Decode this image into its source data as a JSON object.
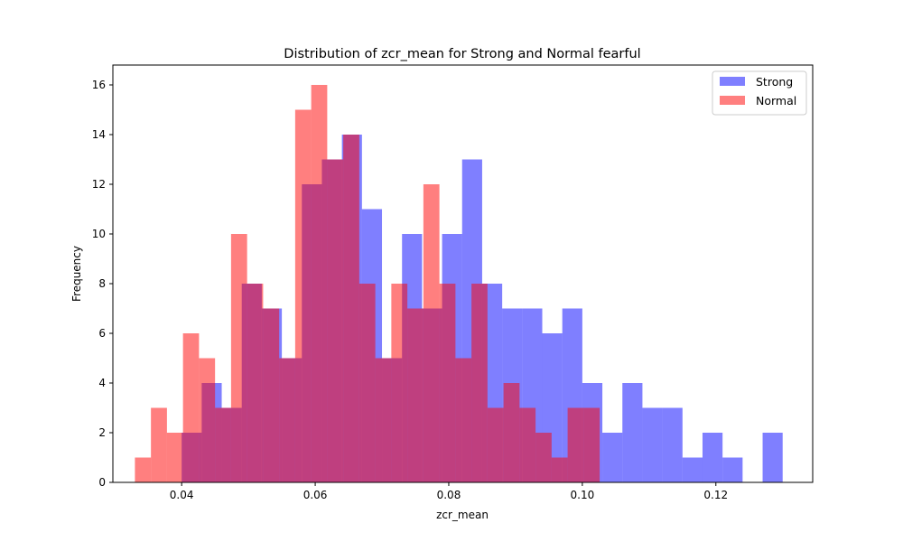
{
  "chart_data": {
    "type": "histogram",
    "title": "Distribution of zcr_mean for Strong and Normal fearful",
    "xlabel": "zcr_mean",
    "ylabel": "Frequency",
    "xlim": [
      0.0297,
      0.1345
    ],
    "ylim": [
      0,
      16.8
    ],
    "xticks": [
      0.04,
      0.06,
      0.08,
      0.1,
      0.12
    ],
    "xtick_labels": [
      "0.04",
      "0.06",
      "0.08",
      "0.10",
      "0.12"
    ],
    "yticks": [
      0,
      2,
      4,
      6,
      8,
      10,
      12,
      14,
      16
    ],
    "ytick_labels": [
      "0",
      "2",
      "4",
      "6",
      "8",
      "10",
      "12",
      "14",
      "16"
    ],
    "grid": false,
    "legend_position": "top-right",
    "series": [
      {
        "name": "Strong",
        "color": "#0000ff",
        "alpha": 0.5,
        "bin_start": 0.04,
        "bin_width": 0.003,
        "counts": [
          2,
          4,
          3,
          8,
          7,
          5,
          12,
          13,
          14,
          11,
          5,
          10,
          7,
          10,
          13,
          8,
          7,
          7,
          6,
          7,
          4,
          2,
          4,
          3,
          3,
          1,
          2,
          1,
          0,
          2
        ]
      },
      {
        "name": "Normal",
        "color": "#ff0000",
        "alpha": 0.5,
        "bin_start": 0.033,
        "bin_width": 0.0024,
        "counts": [
          1,
          3,
          2,
          6,
          5,
          3,
          10,
          8,
          7,
          5,
          15,
          16,
          13,
          14,
          8,
          5,
          8,
          7,
          12,
          8,
          5,
          8,
          3,
          4,
          3,
          2,
          1,
          3,
          3,
          0
        ]
      }
    ]
  }
}
